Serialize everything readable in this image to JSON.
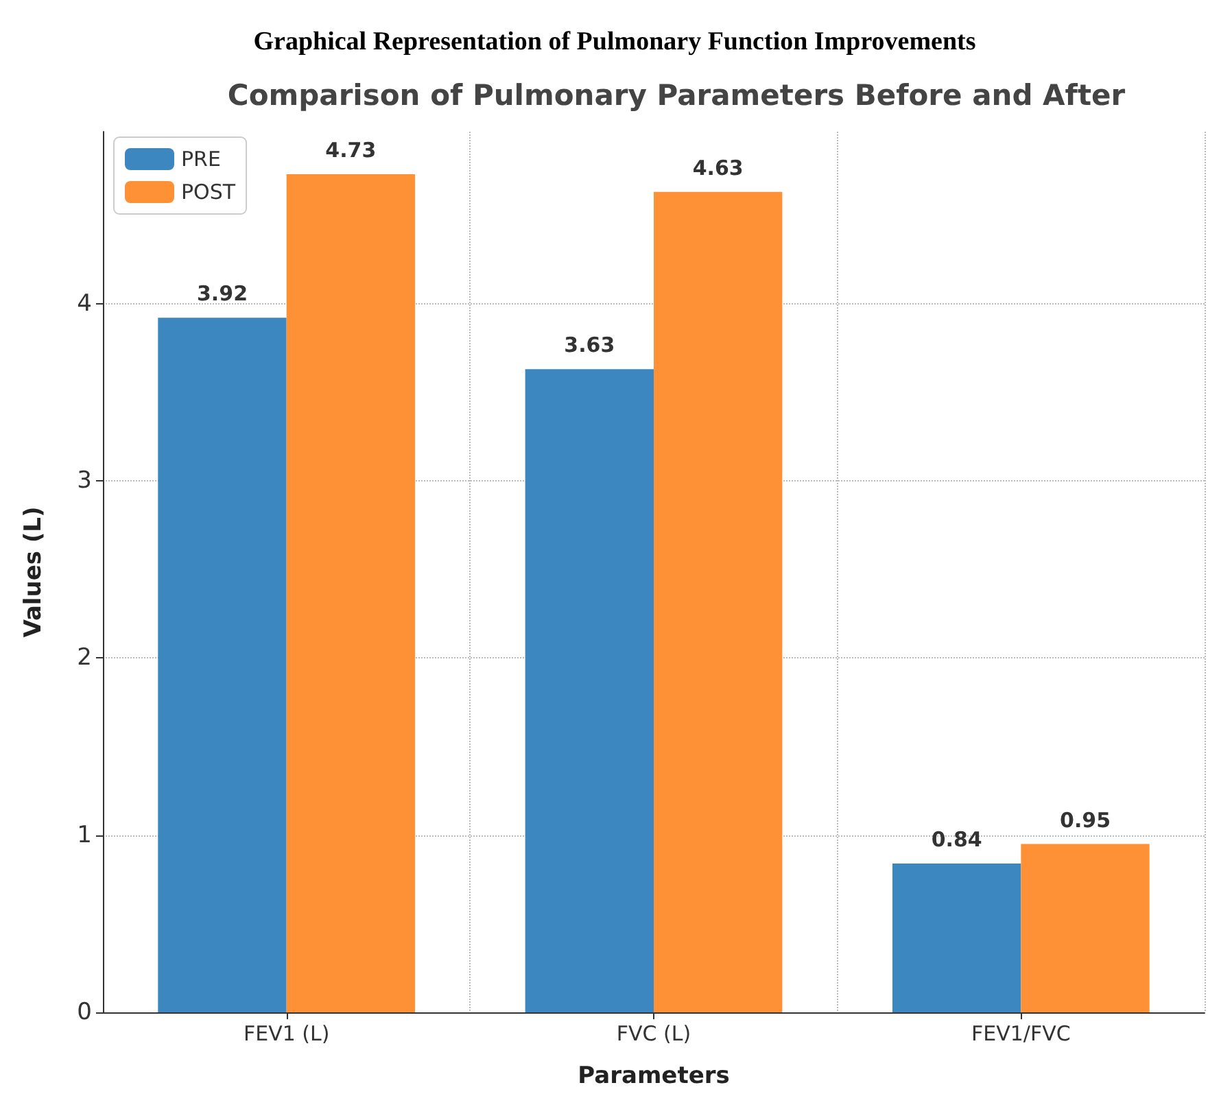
{
  "chart_data": {
    "type": "bar",
    "title": "Graphical Representation of Pulmonary Function Improvements",
    "subtitle": "Comparison of Pulmonary Parameters Before and After",
    "xlabel": "Parameters",
    "ylabel": "Values (L)",
    "categories": [
      "FEV1 (L)",
      "FVC (L)",
      "FEV1/FVC"
    ],
    "series": [
      {
        "name": "PRE",
        "color": "#3d87c1",
        "values": [
          3.92,
          3.63,
          0.84
        ]
      },
      {
        "name": "POST",
        "color": "#fe9035",
        "values": [
          4.73,
          4.63,
          0.95
        ]
      }
    ],
    "ylim": [
      0,
      4.97
    ],
    "yticks": [
      0,
      1,
      2,
      3,
      4
    ],
    "grid": true,
    "legend": "top left",
    "data_labels": true
  }
}
